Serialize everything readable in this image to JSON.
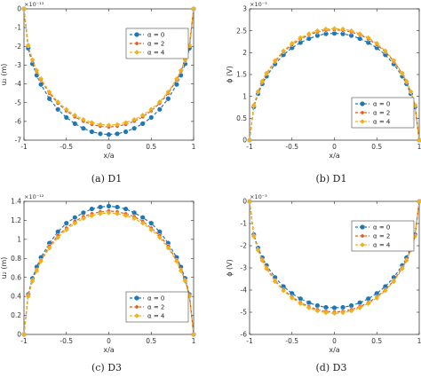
{
  "figure": {
    "captions": [
      "(a)  D1",
      "(b)  D1",
      "(c)  D3",
      "(d)  D3"
    ]
  },
  "series_colors": [
    "#1f77b4",
    "#e2581b",
    "#f0b21a"
  ],
  "chart_data": [
    {
      "type": "line",
      "panel": "a",
      "xlabel": "x/a",
      "ylabel": "u₂ (m)",
      "exponent_label": "×10⁻¹³",
      "xlim": [
        -1,
        1
      ],
      "ylim": [
        -7,
        0
      ],
      "xticks": [
        -1,
        -0.5,
        0,
        0.5,
        1
      ],
      "xtick_labels": [
        "-1",
        "-0.5",
        "0",
        "0.5",
        "1"
      ],
      "yticks": [
        0,
        -1,
        -2,
        -3,
        -4,
        -5,
        -6,
        -7
      ],
      "ytick_labels": [
        "0",
        "-1",
        "-2",
        "-3",
        "-4",
        "-5",
        "-6",
        "-7"
      ],
      "legend": {
        "position": "top-right",
        "entries": [
          "α = 0",
          "α = 2",
          "α = 4"
        ]
      },
      "x": [
        -1,
        -0.95,
        -0.9,
        -0.85,
        -0.8,
        -0.7,
        -0.6,
        -0.5,
        -0.4,
        -0.3,
        -0.2,
        -0.1,
        0,
        0.1,
        0.2,
        0.3,
        0.4,
        0.5,
        0.6,
        0.7,
        0.8,
        0.85,
        0.9,
        0.95,
        1
      ],
      "series": [
        {
          "name": "α = 0",
          "values": [
            0,
            -2.1,
            -2.93,
            -3.54,
            -4.03,
            -4.79,
            -5.36,
            -5.79,
            -6.12,
            -6.37,
            -6.55,
            -6.66,
            -6.7,
            -6.66,
            -6.55,
            -6.37,
            -6.12,
            -5.79,
            -5.36,
            -4.79,
            -4.03,
            -3.54,
            -2.93,
            -2.1,
            0
          ]
        },
        {
          "name": "α = 2",
          "values": [
            0,
            -1.97,
            -2.76,
            -3.33,
            -3.79,
            -4.5,
            -5.04,
            -5.44,
            -5.76,
            -5.99,
            -6.16,
            -6.26,
            -6.3,
            -6.26,
            -6.16,
            -5.99,
            -5.76,
            -5.44,
            -5.04,
            -4.5,
            -3.79,
            -3.33,
            -2.76,
            -1.97,
            0
          ]
        },
        {
          "name": "α = 4",
          "values": [
            0,
            -1.94,
            -2.71,
            -3.28,
            -3.73,
            -4.43,
            -4.96,
            -5.36,
            -5.67,
            -5.9,
            -6.06,
            -6.17,
            -6.2,
            -6.17,
            -6.06,
            -5.9,
            -5.67,
            -5.36,
            -4.96,
            -4.43,
            -3.73,
            -3.28,
            -2.71,
            -1.94,
            0
          ]
        }
      ]
    },
    {
      "type": "line",
      "panel": "b",
      "xlabel": "x/a",
      "ylabel": "ϕ (V)",
      "exponent_label": "×10⁻³",
      "xlim": [
        -1,
        1
      ],
      "ylim": [
        0,
        3
      ],
      "xticks": [
        -1,
        -0.5,
        0,
        0.5,
        1
      ],
      "xtick_labels": [
        "-1",
        "-0.5",
        "0",
        "0.5",
        "1"
      ],
      "yticks": [
        0,
        0.5,
        1,
        1.5,
        2,
        2.5,
        3
      ],
      "ytick_labels": [
        "0",
        "0.5",
        "1",
        "1.5",
        "2",
        "2.5",
        "3"
      ],
      "legend": {
        "position": "bottom-right",
        "entries": [
          "α = 0",
          "α = 2",
          "α = 4"
        ]
      },
      "x": [
        -1,
        -0.95,
        -0.9,
        -0.85,
        -0.8,
        -0.7,
        -0.6,
        -0.5,
        -0.4,
        -0.3,
        -0.2,
        -0.1,
        0,
        0.1,
        0.2,
        0.3,
        0.4,
        0.5,
        0.6,
        0.7,
        0.8,
        0.85,
        0.9,
        0.95,
        1
      ],
      "series": [
        {
          "name": "α = 0",
          "values": [
            0,
            0.76,
            1.06,
            1.29,
            1.46,
            1.74,
            1.95,
            2.11,
            2.23,
            2.32,
            2.39,
            2.43,
            2.44,
            2.43,
            2.39,
            2.32,
            2.23,
            2.11,
            1.95,
            1.74,
            1.46,
            1.29,
            1.06,
            0.76,
            0
          ]
        },
        {
          "name": "α = 2",
          "values": [
            0,
            0.79,
            1.1,
            1.33,
            1.52,
            1.8,
            2.02,
            2.18,
            2.31,
            2.41,
            2.47,
            2.51,
            2.52,
            2.51,
            2.47,
            2.41,
            2.31,
            2.18,
            2.02,
            1.8,
            1.52,
            1.33,
            1.1,
            0.79,
            0
          ]
        },
        {
          "name": "α = 4",
          "values": [
            0,
            0.8,
            1.11,
            1.35,
            1.53,
            1.82,
            2.04,
            2.21,
            2.34,
            2.43,
            2.5,
            2.54,
            2.55,
            2.54,
            2.5,
            2.43,
            2.34,
            2.21,
            2.04,
            1.82,
            1.53,
            1.35,
            1.11,
            0.8,
            0
          ]
        }
      ]
    },
    {
      "type": "line",
      "panel": "c",
      "xlabel": "x/a",
      "ylabel": "u₂ (m)",
      "exponent_label": "×10⁻¹²",
      "xlim": [
        -1,
        1
      ],
      "ylim": [
        0,
        1.4
      ],
      "xticks": [
        -1,
        -0.5,
        0,
        0.5,
        1
      ],
      "xtick_labels": [
        "-1",
        "-0.5",
        "0",
        "0.5",
        "1"
      ],
      "yticks": [
        0,
        0.2,
        0.4,
        0.6,
        0.8,
        1,
        1.2,
        1.4
      ],
      "ytick_labels": [
        "0",
        "0.2",
        "0.4",
        "0.6",
        "0.8",
        "1",
        "1.2",
        "1.4"
      ],
      "legend": {
        "position": "bottom-right",
        "entries": [
          "α = 0",
          "α = 2",
          "α = 4"
        ]
      },
      "x": [
        -1,
        -0.95,
        -0.9,
        -0.85,
        -0.8,
        -0.7,
        -0.6,
        -0.5,
        -0.4,
        -0.3,
        -0.2,
        -0.1,
        0,
        0.1,
        0.2,
        0.3,
        0.4,
        0.5,
        0.6,
        0.7,
        0.8,
        0.85,
        0.9,
        0.95,
        1
      ],
      "series": [
        {
          "name": "α = 0",
          "values": [
            0,
            0.42,
            0.59,
            0.71,
            0.81,
            0.96,
            1.08,
            1.17,
            1.23,
            1.28,
            1.32,
            1.34,
            1.35,
            1.34,
            1.32,
            1.28,
            1.23,
            1.17,
            1.08,
            0.96,
            0.81,
            0.71,
            0.59,
            0.42,
            0
          ]
        },
        {
          "name": "α = 2",
          "values": [
            0,
            0.41,
            0.57,
            0.68,
            0.78,
            0.93,
            1.04,
            1.12,
            1.19,
            1.24,
            1.27,
            1.29,
            1.3,
            1.29,
            1.27,
            1.24,
            1.19,
            1.12,
            1.04,
            0.93,
            0.78,
            0.68,
            0.57,
            0.41,
            0
          ]
        },
        {
          "name": "α = 4",
          "values": [
            0,
            0.4,
            0.56,
            0.67,
            0.77,
            0.91,
            1.02,
            1.1,
            1.17,
            1.22,
            1.25,
            1.27,
            1.28,
            1.27,
            1.25,
            1.22,
            1.17,
            1.1,
            1.02,
            0.91,
            0.77,
            0.67,
            0.56,
            0.4,
            0
          ]
        }
      ]
    },
    {
      "type": "line",
      "panel": "d",
      "xlabel": "x/a",
      "ylabel": "ϕ (V)",
      "exponent_label": "×10⁻³",
      "xlim": [
        -1,
        1
      ],
      "ylim": [
        -6,
        0
      ],
      "xticks": [
        -1,
        -0.5,
        0,
        0.5,
        1
      ],
      "xtick_labels": [
        "-1",
        "-0.5",
        "0",
        "0.5",
        "1"
      ],
      "yticks": [
        0,
        -1,
        -2,
        -3,
        -4,
        -5,
        -6
      ],
      "ytick_labels": [
        "0",
        "-1",
        "-2",
        "-3",
        "-4",
        "-5",
        "-6"
      ],
      "legend": {
        "position": "top-right",
        "entries": [
          "α = 0",
          "α = 2",
          "α = 4"
        ]
      },
      "x": [
        -1,
        -0.95,
        -0.9,
        -0.85,
        -0.8,
        -0.7,
        -0.6,
        -0.5,
        -0.4,
        -0.3,
        -0.2,
        -0.1,
        0,
        0.1,
        0.2,
        0.3,
        0.4,
        0.5,
        0.6,
        0.7,
        0.8,
        0.85,
        0.9,
        0.95,
        1
      ],
      "series": [
        {
          "name": "α = 0",
          "values": [
            0,
            -1.5,
            -2.1,
            -2.54,
            -2.89,
            -3.43,
            -3.84,
            -4.15,
            -4.39,
            -4.57,
            -4.7,
            -4.78,
            -4.8,
            -4.78,
            -4.7,
            -4.57,
            -4.39,
            -4.15,
            -3.84,
            -3.43,
            -2.89,
            -2.54,
            -2.1,
            -1.5,
            0
          ]
        },
        {
          "name": "α = 2",
          "values": [
            0,
            -1.56,
            -2.18,
            -2.64,
            -3.0,
            -3.57,
            -3.99,
            -4.31,
            -4.56,
            -4.75,
            -4.88,
            -4.96,
            -4.99,
            -4.96,
            -4.88,
            -4.75,
            -4.56,
            -4.31,
            -3.99,
            -3.57,
            -3.0,
            -2.64,
            -2.18,
            -1.56,
            0
          ]
        },
        {
          "name": "α = 4",
          "values": [
            0,
            -1.58,
            -2.2,
            -2.67,
            -3.04,
            -3.61,
            -4.03,
            -4.36,
            -4.61,
            -4.8,
            -4.94,
            -5.02,
            -5.05,
            -5.02,
            -4.94,
            -4.8,
            -4.61,
            -4.36,
            -4.03,
            -3.61,
            -3.04,
            -2.67,
            -2.2,
            -1.58,
            0
          ]
        }
      ]
    }
  ]
}
